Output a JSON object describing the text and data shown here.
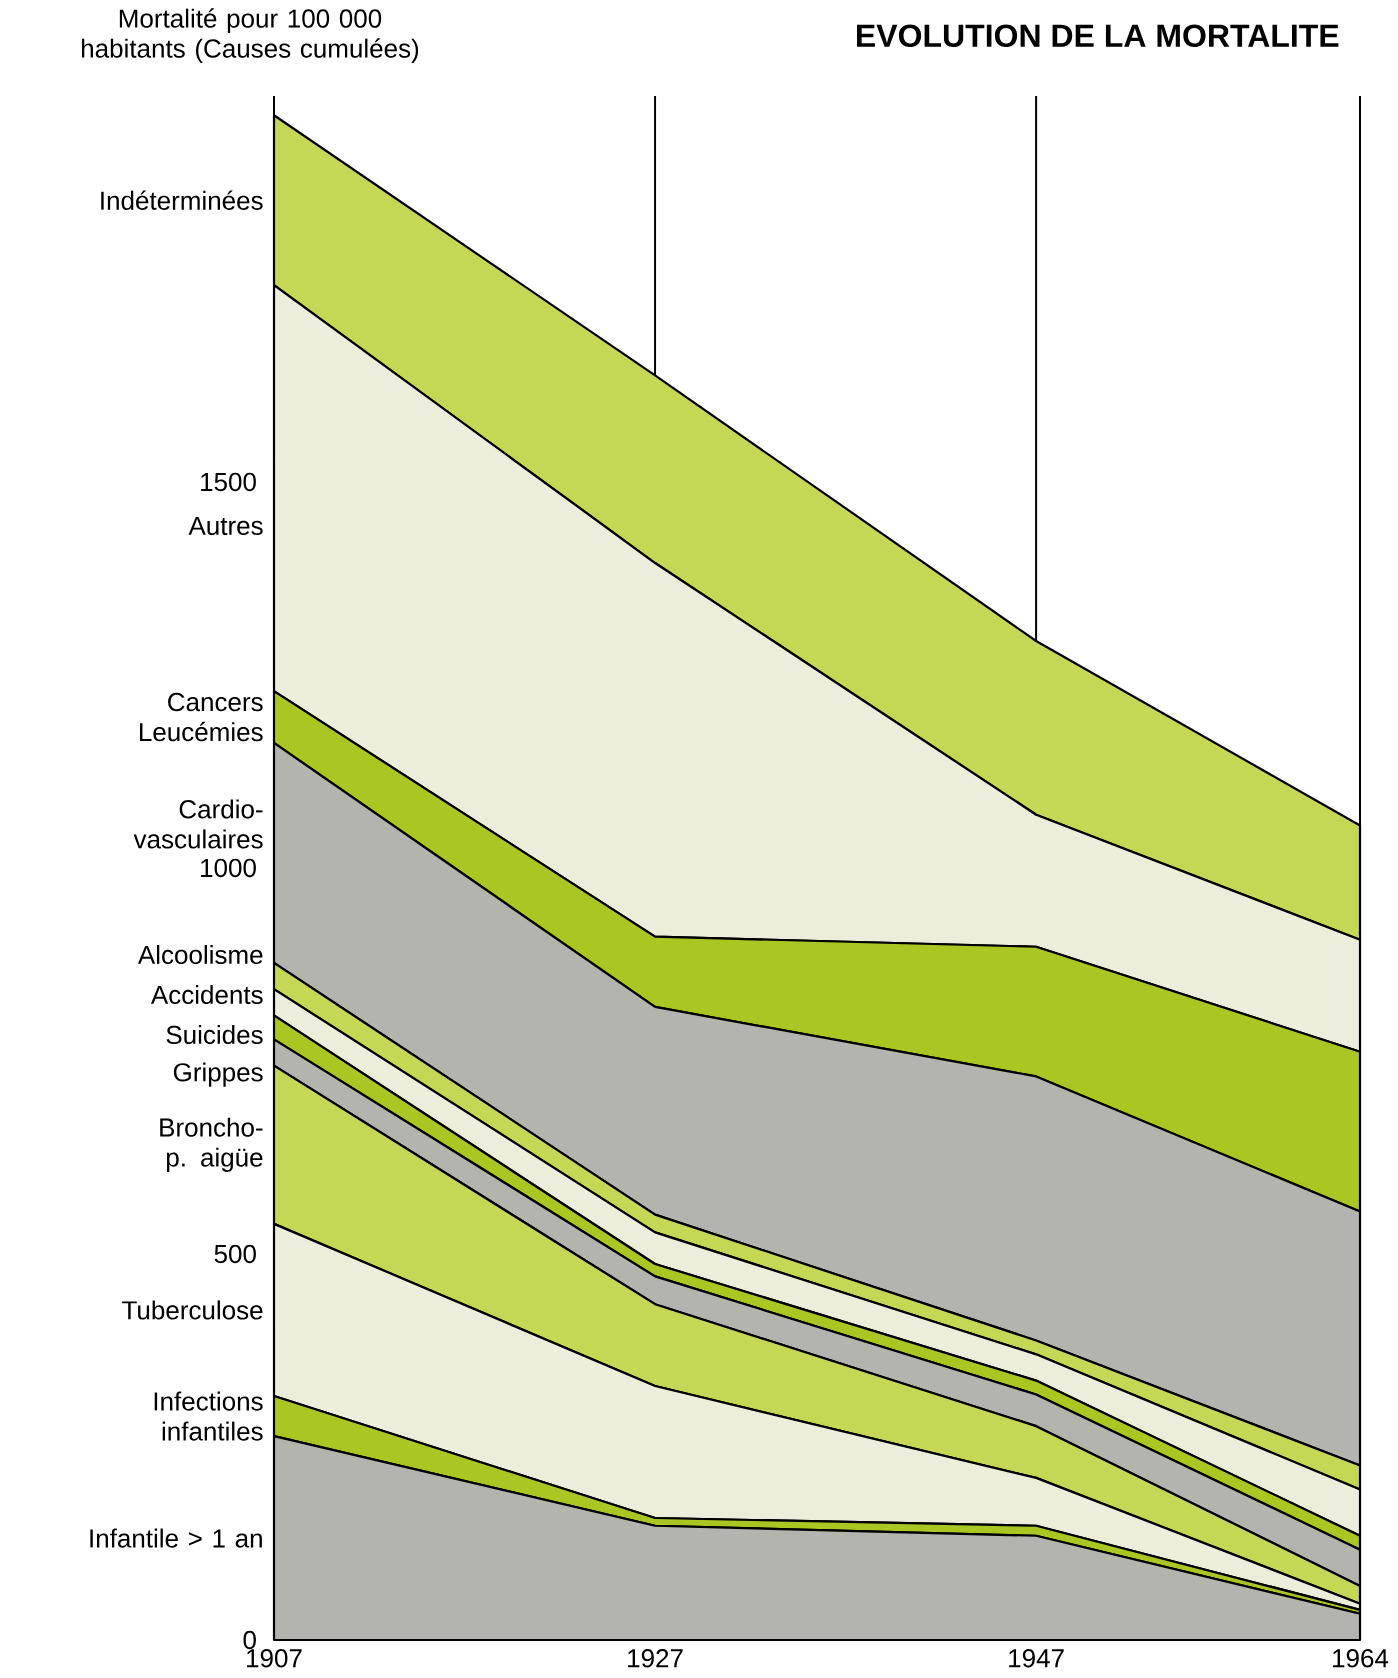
{
  "chart_data": {
    "type": "area",
    "stacked": true,
    "title": "EVOLUTION DE LA MORTALITE",
    "ylabel": "Mortalité pour 100 000 habitants (Causes cumulées)",
    "x": [
      1907,
      1927,
      1947,
      1964
    ],
    "xlim": [
      1907,
      1964
    ],
    "xticks": [
      1907,
      1927,
      1947,
      1964
    ],
    "ylim": [
      0,
      2000
    ],
    "yticks": [
      0,
      500,
      1000,
      1500
    ],
    "grid": "x",
    "marker": "none",
    "line_style": "solid",
    "series": [
      {
        "name": "Infantile > 1 an",
        "color": "#b4b4ae",
        "values": [
          264,
          148,
          135,
          34
        ]
      },
      {
        "name": "Infections infantiles",
        "color": "#a9c623",
        "values": [
          52,
          10,
          13,
          5
        ]
      },
      {
        "name": "Tuberculose",
        "color": "#ededdc",
        "values": [
          223,
          171,
          62,
          8
        ]
      },
      {
        "name": "Broncho-p. aigüe",
        "color": "#c6d655",
        "values": [
          205,
          106,
          67,
          23
        ]
      },
      {
        "name": "Grippes",
        "color": "#b4b4ae",
        "values": [
          34,
          36,
          41,
          47
        ]
      },
      {
        "name": "Suicides",
        "color": "#a9c623",
        "values": [
          31,
          16,
          18,
          18
        ]
      },
      {
        "name": "Accidents",
        "color": "#ededdc",
        "values": [
          34,
          41,
          34,
          60
        ]
      },
      {
        "name": "Alcoolisme",
        "color": "#c6d655",
        "values": [
          34,
          23,
          18,
          31
        ]
      },
      {
        "name": "Cardio-vasculaires",
        "color": "#b4b4ae",
        "values": [
          285,
          269,
          342,
          329
        ]
      },
      {
        "name": "Cancers Leucémies",
        "color": "#a9c623",
        "values": [
          67,
          91,
          168,
          207
        ]
      },
      {
        "name": "Autres",
        "color": "#ededdc",
        "values": [
          526,
          484,
          171,
          145
        ]
      },
      {
        "name": "Indéterminées",
        "color": "#c6d655",
        "values": [
          220,
          243,
          225,
          148
        ]
      }
    ]
  }
}
